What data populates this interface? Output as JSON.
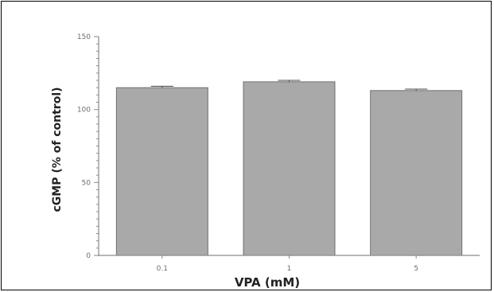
{
  "chart_data": {
    "type": "bar",
    "categories": [
      "0.1",
      "1",
      "5"
    ],
    "values": [
      115,
      119,
      113
    ],
    "errors": [
      1,
      1,
      1
    ],
    "xlabel": "VPA (mM)",
    "ylabel": "cGMP (% of control)",
    "ylim": [
      0,
      150
    ],
    "yticks": [
      0,
      50,
      100,
      150
    ],
    "ytick_labels": [
      "0",
      "50",
      "100",
      "150"
    ],
    "grid": false,
    "legend": "none",
    "colors": {
      "bar": "#a9a9a9",
      "bar_edge": "#6f6f6f",
      "axis": "#8a8a8a"
    }
  }
}
